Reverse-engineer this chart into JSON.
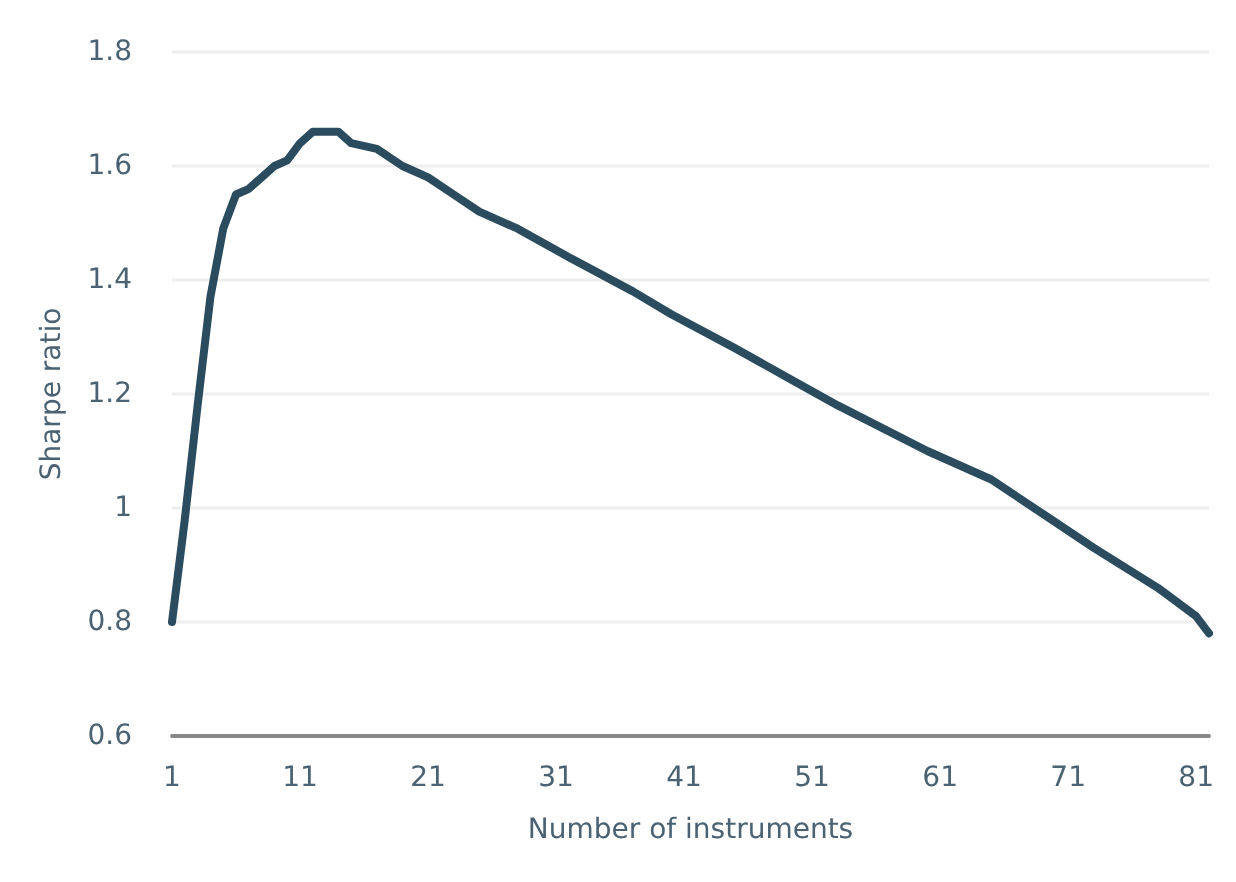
{
  "chart_data": {
    "type": "line",
    "xlabel": "Number of instruments",
    "ylabel": "Sharpe ratio",
    "x": [
      1,
      2,
      3,
      4,
      5,
      6,
      7,
      8,
      9,
      10,
      11,
      12,
      13,
      14,
      15,
      17,
      19,
      21,
      23,
      25,
      28,
      32,
      37,
      40,
      45,
      49,
      53,
      60,
      65,
      69,
      73,
      78,
      81,
      82
    ],
    "series": [
      {
        "color": "#2b4b5f",
        "values": [
          0.8,
          0.98,
          1.18,
          1.37,
          1.49,
          1.55,
          1.56,
          1.58,
          1.6,
          1.61,
          1.64,
          1.66,
          1.66,
          1.66,
          1.64,
          1.63,
          1.6,
          1.58,
          1.55,
          1.52,
          1.49,
          1.44,
          1.38,
          1.34,
          1.28,
          1.23,
          1.18,
          1.1,
          1.05,
          0.99,
          0.93,
          0.86,
          0.81,
          0.78
        ]
      }
    ],
    "xlim": [
      1,
      82
    ],
    "xticks": [
      1,
      11,
      21,
      31,
      41,
      51,
      61,
      71,
      81
    ],
    "ylim": [
      0.6,
      1.8
    ],
    "yticks": [
      0.6,
      0.8,
      1,
      1.2,
      1.4,
      1.6,
      1.8
    ],
    "grid": "y",
    "marker": "none",
    "line_style": "solid"
  }
}
